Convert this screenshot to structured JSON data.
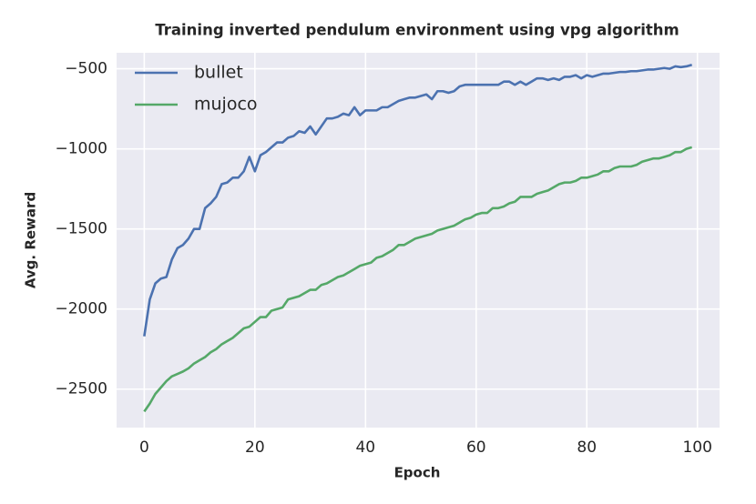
{
  "chart_data": {
    "type": "line",
    "title": "Training inverted pendulum environment using vpg algorithm",
    "x_label": "Epoch",
    "y_label": "Avg. Reward",
    "x": [
      0,
      1,
      2,
      3,
      4,
      5,
      6,
      7,
      8,
      9,
      10,
      11,
      12,
      13,
      14,
      15,
      16,
      17,
      18,
      19,
      20,
      21,
      22,
      23,
      24,
      25,
      26,
      27,
      28,
      29,
      30,
      31,
      32,
      33,
      34,
      35,
      36,
      37,
      38,
      39,
      40,
      41,
      42,
      43,
      44,
      45,
      46,
      47,
      48,
      49,
      50,
      51,
      52,
      53,
      54,
      55,
      56,
      57,
      58,
      59,
      60,
      61,
      62,
      63,
      64,
      65,
      66,
      67,
      68,
      69,
      70,
      71,
      72,
      73,
      74,
      75,
      76,
      77,
      78,
      79,
      80,
      81,
      82,
      83,
      84,
      85,
      86,
      87,
      88,
      89,
      90,
      91,
      92,
      93,
      94,
      95,
      96,
      97,
      98,
      99
    ],
    "series": [
      {
        "name": "bullet",
        "color": "#4c72b0",
        "values": [
          -2170,
          -1940,
          -1840,
          -1810,
          -1800,
          -1690,
          -1620,
          -1600,
          -1560,
          -1500,
          -1500,
          -1370,
          -1340,
          -1300,
          -1220,
          -1210,
          -1180,
          -1180,
          -1140,
          -1050,
          -1140,
          -1040,
          -1020,
          -990,
          -960,
          -960,
          -930,
          -920,
          -890,
          -900,
          -860,
          -910,
          -860,
          -810,
          -810,
          -800,
          -780,
          -790,
          -740,
          -790,
          -760,
          -760,
          -760,
          -740,
          -740,
          -720,
          -700,
          -690,
          -680,
          -680,
          -670,
          -660,
          -690,
          -640,
          -640,
          -650,
          -640,
          -610,
          -600,
          -600,
          -600,
          -600,
          -600,
          -600,
          -600,
          -580,
          -580,
          -600,
          -580,
          -600,
          -580,
          -560,
          -560,
          -570,
          -560,
          -570,
          -550,
          -550,
          -540,
          -560,
          -540,
          -550,
          -540,
          -530,
          -530,
          -525,
          -520,
          -520,
          -515,
          -515,
          -510,
          -505,
          -505,
          -500,
          -495,
          -500,
          -485,
          -490,
          -485,
          -475
        ]
      },
      {
        "name": "mujoco",
        "color": "#55a868",
        "values": [
          -2640,
          -2590,
          -2530,
          -2490,
          -2450,
          -2420,
          -2405,
          -2390,
          -2370,
          -2340,
          -2320,
          -2300,
          -2270,
          -2250,
          -2220,
          -2200,
          -2180,
          -2150,
          -2120,
          -2110,
          -2080,
          -2050,
          -2050,
          -2010,
          -2000,
          -1990,
          -1940,
          -1930,
          -1920,
          -1900,
          -1880,
          -1880,
          -1850,
          -1840,
          -1820,
          -1800,
          -1790,
          -1770,
          -1750,
          -1730,
          -1720,
          -1710,
          -1680,
          -1670,
          -1650,
          -1630,
          -1600,
          -1600,
          -1580,
          -1560,
          -1550,
          -1540,
          -1530,
          -1510,
          -1500,
          -1490,
          -1480,
          -1460,
          -1440,
          -1430,
          -1410,
          -1400,
          -1400,
          -1370,
          -1370,
          -1360,
          -1340,
          -1330,
          -1300,
          -1300,
          -1300,
          -1280,
          -1270,
          -1260,
          -1240,
          -1220,
          -1210,
          -1210,
          -1200,
          -1180,
          -1180,
          -1170,
          -1160,
          -1140,
          -1140,
          -1120,
          -1110,
          -1110,
          -1110,
          -1100,
          -1080,
          -1070,
          -1060,
          -1060,
          -1050,
          -1040,
          -1020,
          -1020,
          -1000,
          -990
        ]
      }
    ],
    "xlim": [
      -5,
      104
    ],
    "xticks": [
      0,
      20,
      40,
      60,
      80,
      100
    ],
    "ylim": [
      -2740,
      -400
    ],
    "yticks": [
      {
        "value": -2500,
        "label": "−2500"
      },
      {
        "value": -2000,
        "label": "−2000"
      },
      {
        "value": -1500,
        "label": "−1500"
      },
      {
        "value": -1000,
        "label": "−1000"
      },
      {
        "value": -500,
        "label": "−500"
      }
    ],
    "grid": true,
    "legend": "upper left"
  }
}
